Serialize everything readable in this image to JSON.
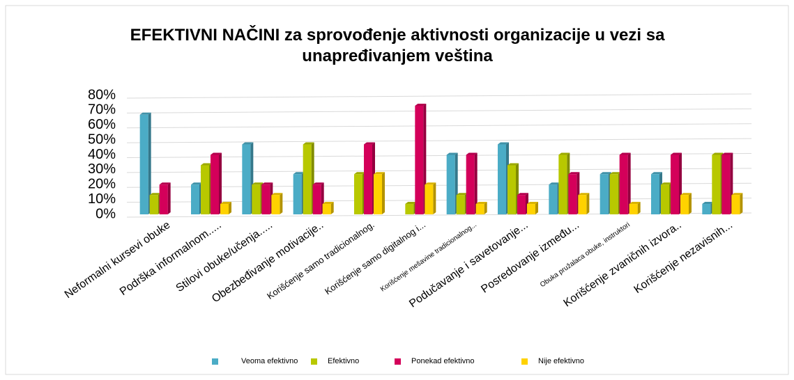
{
  "chart_data": {
    "type": "bar",
    "title": "EFEKTIVNI NAČINI za sprovođenje aktivnosti organizacije u vezi sa unapređivanjem veština",
    "categories": [
      "Neformalni kursevi obuke",
      "Podrška informalnom.....",
      "Stilovi obuke/učenja.....",
      "Obezbeđivanje motivacije..",
      "Korišćenje samo tradicionalnog.",
      "Korišćenje samo digitalnog i...",
      "Korišćenje mešavine tradicionalnog...",
      "Podučavanje i savetovanje...",
      "Posredovanje između...",
      "Obuka pružalaca obuke, instruktori",
      "Korišćenje zvaničnih izvora..",
      "Korišćenje nezavisnih..."
    ],
    "series": [
      {
        "name": "Veoma efektivno",
        "color": "#4bacc6",
        "values": [
          67,
          20,
          47,
          27,
          0,
          0,
          40,
          47,
          20,
          27,
          27,
          7
        ]
      },
      {
        "name": "Efektivno",
        "color": "#b8c800",
        "values": [
          13,
          33,
          20,
          47,
          27,
          7,
          13,
          33,
          40,
          27,
          20,
          40
        ]
      },
      {
        "name": "Ponekad efektivno",
        "color": "#d4005a",
        "values": [
          20,
          40,
          20,
          20,
          47,
          73,
          40,
          13,
          27,
          40,
          40,
          40
        ]
      },
      {
        "name": "Nije efektivno",
        "color": "#ffd200",
        "values": [
          0,
          7,
          13,
          7,
          27,
          20,
          7,
          7,
          13,
          7,
          13,
          13
        ]
      }
    ],
    "ylim": [
      0,
      80
    ],
    "yticks": [
      {
        "value": 0,
        "label": "0%"
      },
      {
        "value": 10,
        "label": "10%"
      },
      {
        "value": 20,
        "label": "20%"
      },
      {
        "value": 30,
        "label": "30%"
      },
      {
        "value": 40,
        "label": "40%"
      },
      {
        "value": 50,
        "label": "50%"
      },
      {
        "value": 60,
        "label": "60%"
      },
      {
        "value": 70,
        "label": "70%"
      },
      {
        "value": 80,
        "label": "80%"
      }
    ],
    "grid": true,
    "legend": "bottom"
  }
}
